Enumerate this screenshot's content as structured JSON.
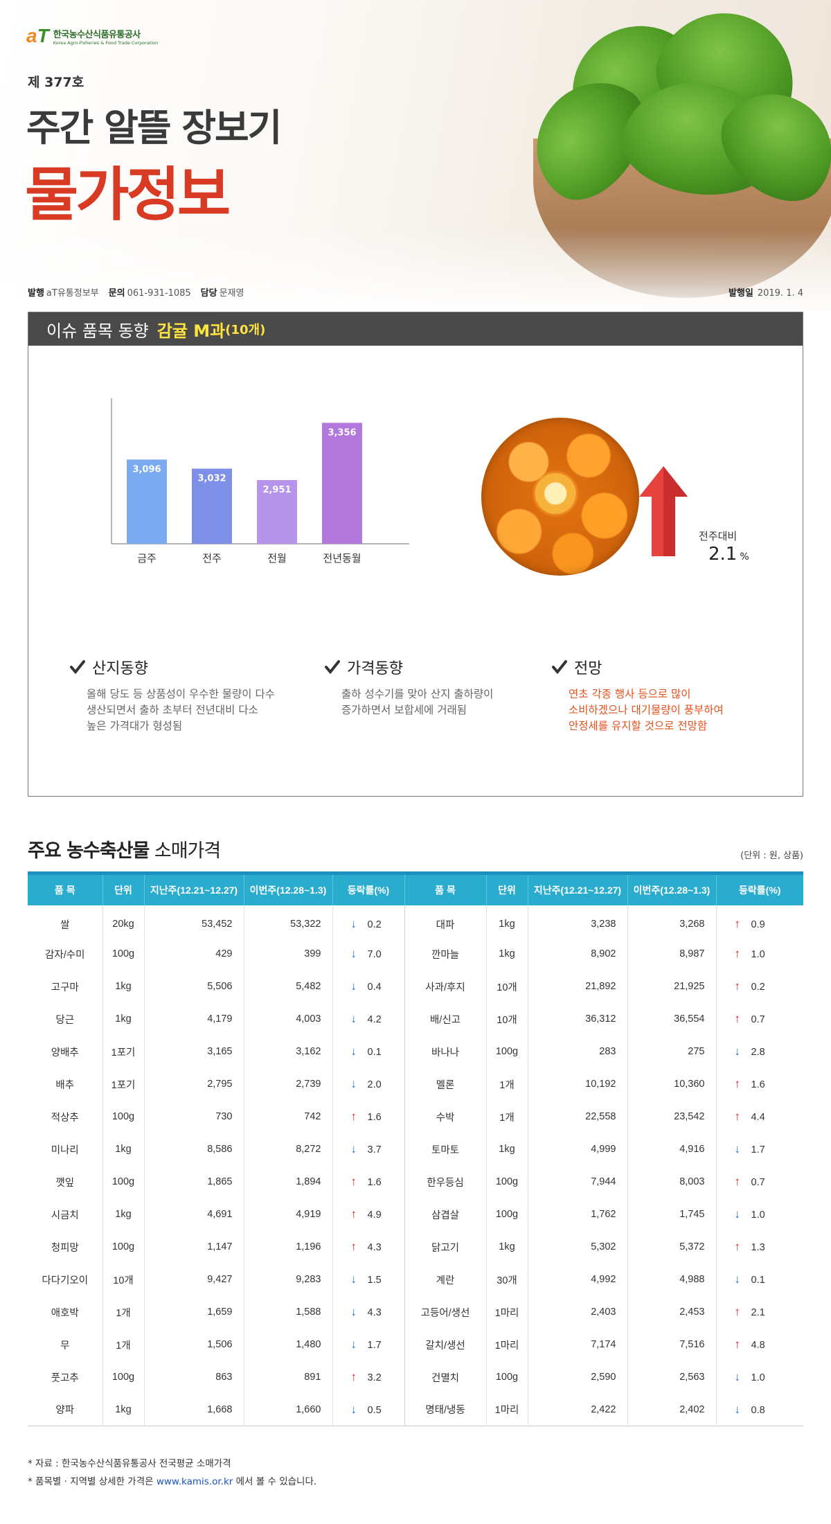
{
  "header": {
    "logo_mark_a": "a",
    "logo_mark_t": "T",
    "logo_ko": "한국농수산식품유통공사",
    "logo_en": "Korea Agro-Fisheries & Food Trade Corporation",
    "issue_no": "제 377호",
    "title_main": "주간 알뜰 장보기",
    "title_sub": "물가정보",
    "publisher_label": "발행",
    "publisher_value": "aT유통정보부",
    "inquiry_label": "문의",
    "inquiry_value": "061-931-1085",
    "manager_label": "담당",
    "manager_value": "문재영",
    "date_label": "발행일",
    "date_value": "2019. 1. 4"
  },
  "issue": {
    "bar_label": "이슈 품목 동향",
    "item": "감귤 M과",
    "unit": "(10개)",
    "compare_label": "전주대비",
    "compare_value": "2.1",
    "compare_unit": "%",
    "compare_direction": "up",
    "trends": [
      {
        "title": "산지동향",
        "lines": [
          "올해 당도 등 상품성이 우수한 물량이 다수",
          "생산되면서 출하 초부터 전년대비 다소",
          "높은 가격대가 형성됨"
        ],
        "highlight": false
      },
      {
        "title": "가격동향",
        "lines": [
          "출하 성수기를 맞아 산지 출하량이",
          "증가하면서 보합세에 거래됨"
        ],
        "highlight": false
      },
      {
        "title": "전망",
        "lines": [
          "연초 각종 행사 등으로 많이",
          "소비하겠으나 대기물량이 풍부하여",
          "안정세를 유지할 것으로 전망함"
        ],
        "highlight": true
      }
    ]
  },
  "chart_data": {
    "type": "bar",
    "categories": [
      "금주",
      "전주",
      "전월",
      "전년동월"
    ],
    "values": [
      3096,
      3032,
      2951,
      3356
    ],
    "value_labels": [
      "3,096",
      "3,032",
      "2,951",
      "3,356"
    ],
    "colors": [
      "#7aaaf0",
      "#7e8fe8",
      "#b694ec",
      "#b278dc"
    ],
    "title": "",
    "xlabel": "",
    "ylabel": "",
    "ylim": [
      2500,
      3500
    ]
  },
  "prices": {
    "section_title_bold": "주요 농수축산물",
    "section_title_rest": "소매가격",
    "unit_note": "(단위 : 원, 상품)",
    "headers": [
      "품 목",
      "단위",
      "지난주(12.21~12.27)",
      "이번주(12.28~1.3)",
      "등락률(%)",
      "품 목",
      "단위",
      "지난주(12.21~12.27)",
      "이번주(12.28~1.3)",
      "등락률(%)"
    ],
    "rows": [
      {
        "l": {
          "name": "쌀",
          "unit": "20kg",
          "prev": "53,452",
          "curr": "53,322",
          "dir": "down",
          "rate": "0.2"
        },
        "r": {
          "name": "대파",
          "unit": "1kg",
          "prev": "3,238",
          "curr": "3,268",
          "dir": "up",
          "rate": "0.9"
        }
      },
      {
        "l": {
          "name": "감자/수미",
          "unit": "100g",
          "prev": "429",
          "curr": "399",
          "dir": "down",
          "rate": "7.0"
        },
        "r": {
          "name": "깐마늘",
          "unit": "1kg",
          "prev": "8,902",
          "curr": "8,987",
          "dir": "up",
          "rate": "1.0"
        }
      },
      {
        "l": {
          "name": "고구마",
          "unit": "1kg",
          "prev": "5,506",
          "curr": "5,482",
          "dir": "down",
          "rate": "0.4"
        },
        "r": {
          "name": "사과/후지",
          "unit": "10개",
          "prev": "21,892",
          "curr": "21,925",
          "dir": "up",
          "rate": "0.2"
        }
      },
      {
        "l": {
          "name": "당근",
          "unit": "1kg",
          "prev": "4,179",
          "curr": "4,003",
          "dir": "down",
          "rate": "4.2"
        },
        "r": {
          "name": "배/신고",
          "unit": "10개",
          "prev": "36,312",
          "curr": "36,554",
          "dir": "up",
          "rate": "0.7"
        }
      },
      {
        "l": {
          "name": "양배추",
          "unit": "1포기",
          "prev": "3,165",
          "curr": "3,162",
          "dir": "down",
          "rate": "0.1"
        },
        "r": {
          "name": "바나나",
          "unit": "100g",
          "prev": "283",
          "curr": "275",
          "dir": "down",
          "rate": "2.8"
        }
      },
      {
        "l": {
          "name": "배추",
          "unit": "1포기",
          "prev": "2,795",
          "curr": "2,739",
          "dir": "down",
          "rate": "2.0"
        },
        "r": {
          "name": "멜론",
          "unit": "1개",
          "prev": "10,192",
          "curr": "10,360",
          "dir": "up",
          "rate": "1.6"
        }
      },
      {
        "l": {
          "name": "적상추",
          "unit": "100g",
          "prev": "730",
          "curr": "742",
          "dir": "up",
          "rate": "1.6"
        },
        "r": {
          "name": "수박",
          "unit": "1개",
          "prev": "22,558",
          "curr": "23,542",
          "dir": "up",
          "rate": "4.4"
        }
      },
      {
        "l": {
          "name": "미나리",
          "unit": "1kg",
          "prev": "8,586",
          "curr": "8,272",
          "dir": "down",
          "rate": "3.7"
        },
        "r": {
          "name": "토마토",
          "unit": "1kg",
          "prev": "4,999",
          "curr": "4,916",
          "dir": "down",
          "rate": "1.7"
        }
      },
      {
        "l": {
          "name": "깻잎",
          "unit": "100g",
          "prev": "1,865",
          "curr": "1,894",
          "dir": "up",
          "rate": "1.6"
        },
        "r": {
          "name": "한우등심",
          "unit": "100g",
          "prev": "7,944",
          "curr": "8,003",
          "dir": "up",
          "rate": "0.7"
        }
      },
      {
        "l": {
          "name": "시금치",
          "unit": "1kg",
          "prev": "4,691",
          "curr": "4,919",
          "dir": "up",
          "rate": "4.9"
        },
        "r": {
          "name": "삼겹살",
          "unit": "100g",
          "prev": "1,762",
          "curr": "1,745",
          "dir": "down",
          "rate": "1.0"
        }
      },
      {
        "l": {
          "name": "청피망",
          "unit": "100g",
          "prev": "1,147",
          "curr": "1,196",
          "dir": "up",
          "rate": "4.3"
        },
        "r": {
          "name": "닭고기",
          "unit": "1kg",
          "prev": "5,302",
          "curr": "5,372",
          "dir": "up",
          "rate": "1.3"
        }
      },
      {
        "l": {
          "name": "다다기오이",
          "unit": "10개",
          "prev": "9,427",
          "curr": "9,283",
          "dir": "down",
          "rate": "1.5"
        },
        "r": {
          "name": "계란",
          "unit": "30개",
          "prev": "4,992",
          "curr": "4,988",
          "dir": "down",
          "rate": "0.1"
        }
      },
      {
        "l": {
          "name": "애호박",
          "unit": "1개",
          "prev": "1,659",
          "curr": "1,588",
          "dir": "down",
          "rate": "4.3"
        },
        "r": {
          "name": "고등어/생선",
          "unit": "1마리",
          "prev": "2,403",
          "curr": "2,453",
          "dir": "up",
          "rate": "2.1"
        }
      },
      {
        "l": {
          "name": "무",
          "unit": "1개",
          "prev": "1,506",
          "curr": "1,480",
          "dir": "down",
          "rate": "1.7"
        },
        "r": {
          "name": "갈치/생선",
          "unit": "1마리",
          "prev": "7,174",
          "curr": "7,516",
          "dir": "up",
          "rate": "4.8"
        }
      },
      {
        "l": {
          "name": "풋고추",
          "unit": "100g",
          "prev": "863",
          "curr": "891",
          "dir": "up",
          "rate": "3.2"
        },
        "r": {
          "name": "건멸치",
          "unit": "100g",
          "prev": "2,590",
          "curr": "2,563",
          "dir": "down",
          "rate": "1.0"
        }
      },
      {
        "l": {
          "name": "양파",
          "unit": "1kg",
          "prev": "1,668",
          "curr": "1,660",
          "dir": "down",
          "rate": "0.5"
        },
        "r": {
          "name": "명태/냉동",
          "unit": "1마리",
          "prev": "2,422",
          "curr": "2,402",
          "dir": "down",
          "rate": "0.8"
        }
      }
    ]
  },
  "notes": {
    "source": "* 자료 : 한국농수산식품유통공사 전국평균 소매가격",
    "detail_prefix": "* 품목별 · 지역별 상세한 가격은 ",
    "detail_link": "www.kamis.or.kr",
    "detail_suffix": " 에서 볼 수 있습니다."
  },
  "colors": {
    "title_red": "#d83a23",
    "table_header": "#2aaccf",
    "up_arrow": "#d62020",
    "down_arrow": "#1e6fd1",
    "highlight_text": "#e6501c",
    "issue_item_yellow": "#ffe340"
  }
}
